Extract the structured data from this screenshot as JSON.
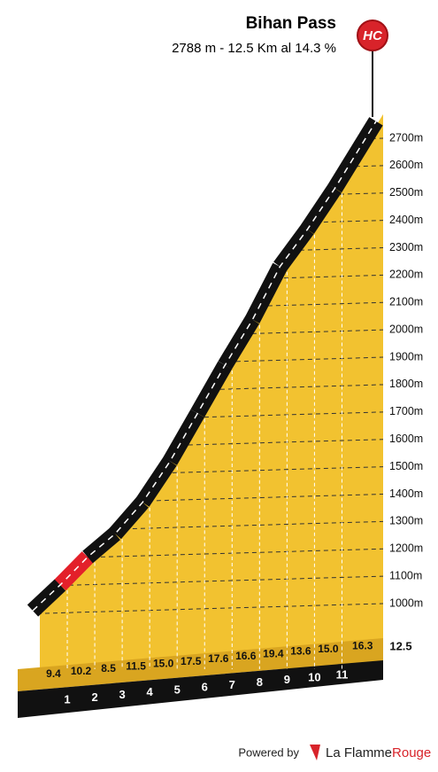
{
  "chart_data": {
    "type": "area",
    "title": "Bihan Pass",
    "subtitle": "2788 m - 12.5 Km al 14.3 %",
    "badge": "HC",
    "x": [
      0,
      1,
      2,
      3,
      4,
      5,
      6,
      7,
      8,
      9,
      10,
      11,
      12.5
    ],
    "values": [
      1000,
      1094,
      1196,
      1281,
      1396,
      1546,
      1721,
      1897,
      2063,
      2257,
      2393,
      2543,
      2788
    ],
    "gradients": [
      9.4,
      10.2,
      8.5,
      11.5,
      15.0,
      17.5,
      17.6,
      16.6,
      19.4,
      13.6,
      15.0,
      16.3
    ],
    "gradient_labels": [
      "9.4",
      "10.2",
      "8.5",
      "11.5",
      "15.0",
      "17.5",
      "17.6",
      "16.6",
      "19.4",
      "13.6",
      "15.0",
      "16.3"
    ],
    "segment_colors": [
      "#111111",
      "#e3202a",
      "#111111",
      "#111111",
      "#111111",
      "#111111",
      "#111111",
      "#111111",
      "#111111",
      "#111111",
      "#111111",
      "#111111"
    ],
    "color": "#f2c230",
    "xlim": [
      0,
      12.5
    ],
    "xticks": [
      1,
      2,
      3,
      4,
      5,
      6,
      7,
      8,
      9,
      10,
      11,
      12.5
    ],
    "ylim": [
      1000,
      2700
    ],
    "yticks": [
      {
        "value": 1000,
        "label": "1000m"
      },
      {
        "value": 1100,
        "label": "1100m"
      },
      {
        "value": 1200,
        "label": "1200m"
      },
      {
        "value": 1300,
        "label": "1300m"
      },
      {
        "value": 1400,
        "label": "1400m"
      },
      {
        "value": 1500,
        "label": "1500m"
      },
      {
        "value": 1600,
        "label": "1600m"
      },
      {
        "value": 1700,
        "label": "1700m"
      },
      {
        "value": 1800,
        "label": "1800m"
      },
      {
        "value": 1900,
        "label": "1900m"
      },
      {
        "value": 2000,
        "label": "2000m"
      },
      {
        "value": 2100,
        "label": "2100m"
      },
      {
        "value": 2200,
        "label": "2200m"
      },
      {
        "value": 2300,
        "label": "2300m"
      },
      {
        "value": 2400,
        "label": "2400m"
      },
      {
        "value": 2500,
        "label": "2500m"
      },
      {
        "value": 2600,
        "label": "2600m"
      },
      {
        "value": 2700,
        "label": "2700m"
      }
    ],
    "grid": true
  },
  "footer": {
    "powered": "Powered by",
    "brand": "La Flamme",
    "brand_accent": "Rouge"
  }
}
